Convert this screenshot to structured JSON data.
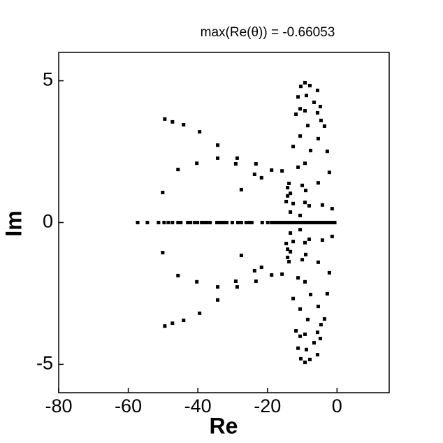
{
  "chart_data": {
    "type": "scatter",
    "title": "max(Re(θ)) = -0.66053",
    "x_label": "Re",
    "y_label": "Im",
    "color": "#000000",
    "xlim": [
      -80,
      15
    ],
    "ylim": [
      -6,
      6
    ],
    "xticks": [
      -80,
      -60,
      -40,
      -20,
      0
    ],
    "yticks": [
      -5,
      0,
      5
    ],
    "x": [
      -49.5,
      -47.3,
      -44.1,
      -39.5,
      -34.3,
      -34.3,
      -40.3,
      -45.7,
      -50.1,
      -28.7,
      -29.1,
      -23.3,
      -23.7,
      -21.7,
      -27.5,
      -18.8,
      -15.8,
      -14.2,
      -9.2,
      -7.8,
      -10.4,
      -5.6,
      -11.2,
      -8.8,
      -6.6,
      -4.8,
      -10.6,
      -11.8,
      -9.2,
      -5.6,
      -4.6,
      -3.6,
      -8.4,
      -10.6,
      -5.4,
      -12.6,
      -2.8,
      -7.6,
      -9.2,
      -11.2,
      -2.2,
      -5.4,
      -10.0,
      -13.8,
      -13.4,
      -14.6,
      -12.6,
      -9.2,
      -8.0,
      -4.2,
      -1.4,
      -9.0,
      -14.2,
      -10.6,
      -13.4,
      -49.5,
      -47.3,
      -44.1,
      -39.5,
      -34.3,
      -34.3,
      -40.3,
      -45.7,
      -50.1,
      -28.7,
      -29.1,
      -23.3,
      -23.7,
      -21.7,
      -27.5,
      -18.8,
      -15.8,
      -14.2,
      -9.2,
      -7.8,
      -10.4,
      -5.6,
      -11.2,
      -8.8,
      -6.6,
      -4.8,
      -10.6,
      -11.8,
      -9.2,
      -5.6,
      -4.6,
      -3.6,
      -8.4,
      -10.6,
      -5.4,
      -12.6,
      -2.8,
      -7.6,
      -9.2,
      -11.2,
      -2.2,
      -5.4,
      -10.0,
      -13.8,
      -13.4,
      -14.6,
      -12.6,
      -9.2,
      -8.0,
      -4.2,
      -1.4,
      -9.0,
      -14.2,
      -10.6,
      -13.4,
      -57.3,
      -54.5,
      -51.3,
      -49.7,
      -48.5,
      -47.3,
      -45.7,
      -44.9,
      -42.9,
      -42.1,
      -40.9,
      -40.1,
      -38.9,
      -38.3,
      -37.5,
      -36.5,
      -34.5,
      -33.5,
      -32.5,
      -31.7,
      -30.1,
      -28.5,
      -27.5,
      -26.1,
      -25.3,
      -24.5,
      -21.5,
      -19.9,
      -18.8,
      -18.0,
      -17.2,
      -16.4,
      -15.8,
      -15.2,
      -14.6,
      -14.0,
      -13.4,
      -12.8,
      -12.2,
      -11.6,
      -11.0,
      -10.4,
      -9.8,
      -9.2,
      -8.6,
      -8.0,
      -7.4,
      -6.8,
      -6.2,
      -5.6,
      -5.0,
      -4.4,
      -3.8,
      -3.2,
      -2.6,
      -2.0,
      -1.4,
      -0.66053
    ],
    "y": [
      3.65,
      3.55,
      3.45,
      3.2,
      2.73,
      2.27,
      2.09,
      1.87,
      1.06,
      2.27,
      2.07,
      2.07,
      1.7,
      1.58,
      1.16,
      1.85,
      1.82,
      1.23,
      4.93,
      4.83,
      4.8,
      4.66,
      4.43,
      4.48,
      4.24,
      4.09,
      4.01,
      3.82,
      3.94,
      3.87,
      3.6,
      3.4,
      3.42,
      3.05,
      2.96,
      2.68,
      2.51,
      2.54,
      2.09,
      1.95,
      1.77,
      1.4,
      1.31,
      1.38,
      1.03,
      0.74,
      0.67,
      0.71,
      0.59,
      0.62,
      0.49,
      1.13,
      0.94,
      0.25,
      0.37,
      -3.65,
      -3.55,
      -3.45,
      -3.2,
      -2.73,
      -2.27,
      -2.09,
      -1.87,
      -1.06,
      -2.27,
      -2.07,
      -2.07,
      -1.7,
      -1.58,
      -1.16,
      -1.85,
      -1.82,
      -1.23,
      -4.93,
      -4.83,
      -4.8,
      -4.66,
      -4.43,
      -4.48,
      -4.24,
      -4.09,
      -4.01,
      -3.82,
      -3.94,
      -3.87,
      -3.6,
      -3.4,
      -3.42,
      -3.05,
      -2.96,
      -2.68,
      -2.51,
      -2.54,
      -2.09,
      -1.95,
      -1.77,
      -1.4,
      -1.31,
      -1.38,
      -1.03,
      -0.74,
      -0.67,
      -0.71,
      -0.59,
      -0.62,
      -0.49,
      -1.13,
      -0.94,
      -0.25,
      -0.37,
      0,
      0,
      0,
      0,
      0,
      0,
      0,
      0,
      0,
      0,
      0,
      0,
      0,
      0,
      0,
      0,
      0,
      0,
      0,
      0,
      0,
      0,
      0,
      0,
      0,
      0,
      0,
      0,
      0,
      0,
      0,
      0,
      0,
      0,
      0,
      0,
      0,
      0,
      0,
      0,
      0,
      0,
      0,
      0,
      0,
      0,
      0,
      0,
      0,
      0,
      0,
      0,
      0,
      0,
      0,
      0,
      0,
      0
    ]
  }
}
